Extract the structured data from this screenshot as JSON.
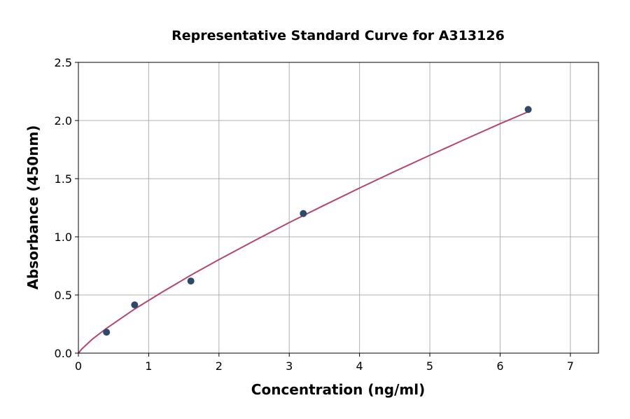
{
  "chart_data": {
    "type": "scatter",
    "title": "Representative Standard Curve for A313126",
    "xlabel": "Concentration (ng/ml)",
    "ylabel": "Absorbance (450nm)",
    "xlim": [
      0,
      7.4
    ],
    "ylim": [
      0,
      2.5
    ],
    "xticks": [
      "0",
      "1",
      "2",
      "3",
      "4",
      "5",
      "6",
      "7"
    ],
    "yticks": [
      "0.0",
      "0.5",
      "1.0",
      "1.5",
      "2.0",
      "2.5"
    ],
    "grid": true,
    "points": [
      {
        "x": 0.4,
        "y": 0.18
      },
      {
        "x": 0.8,
        "y": 0.415
      },
      {
        "x": 1.6,
        "y": 0.62
      },
      {
        "x": 3.2,
        "y": 1.2
      },
      {
        "x": 6.4,
        "y": 2.095
      }
    ],
    "fit_curve": {
      "x": [
        0,
        0.05,
        0.2,
        0.4,
        0.8,
        1.2,
        1.6,
        2.0,
        2.5,
        3.0,
        3.5,
        4.0,
        4.5,
        5.0,
        5.5,
        6.0,
        6.4
      ],
      "y": [
        0,
        0.037,
        0.121,
        0.214,
        0.379,
        0.528,
        0.67,
        0.804,
        0.965,
        1.123,
        1.272,
        1.419,
        1.562,
        1.701,
        1.838,
        1.972,
        2.075
      ]
    },
    "colors": {
      "points": "#2e4a6b",
      "curve": "#b5476c",
      "grid": "#b0b0b0"
    }
  }
}
